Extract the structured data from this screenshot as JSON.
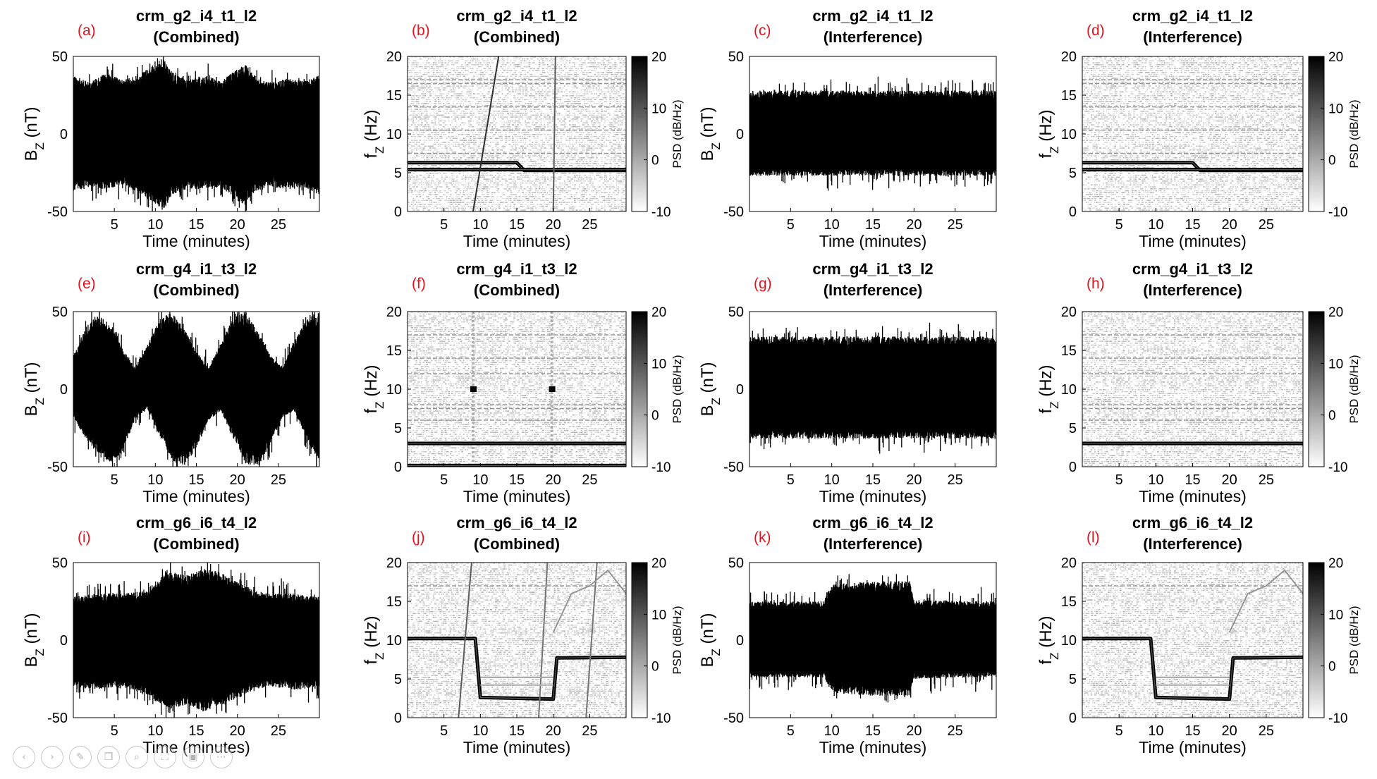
{
  "figure": {
    "panel_letter_color": "#e0141e",
    "ink_color": "#000000",
    "rows": [
      "crm_g2_i4_t1_l2",
      "crm_g4_i1_t3_l2",
      "crm_g6_i6_t4_l2"
    ]
  },
  "viewer_toolbar": {
    "icons": [
      "back-icon",
      "forward-icon",
      "edit-icon",
      "copy-icon",
      "zoom-icon",
      "fullscreen-icon",
      "camera-icon",
      "more-icon"
    ]
  },
  "chart_data": [
    {
      "panel": "(a)",
      "type": "line",
      "kind": "time_series",
      "title": [
        "crm_g2_i4_t1_l2",
        "(Combined)"
      ],
      "xlabel": "Time (minutes)",
      "ylabel": "B_Z (nT)",
      "xlim": [
        0,
        30
      ],
      "ylim": [
        -50,
        50
      ],
      "xticks": [
        5,
        10,
        15,
        20,
        25
      ],
      "yticks": [
        -50,
        0,
        50
      ],
      "envelope": {
        "x": [
          0,
          2,
          4,
          6,
          8,
          9,
          10,
          11,
          12,
          14,
          16,
          18,
          20,
          21,
          22,
          24,
          26,
          28,
          30
        ],
        "upper": [
          38,
          33,
          40,
          35,
          38,
          42,
          46,
          49,
          40,
          35,
          38,
          34,
          42,
          45,
          38,
          33,
          36,
          34,
          38
        ],
        "lower": [
          -37,
          -34,
          -36,
          -33,
          -38,
          -42,
          -45,
          -49,
          -40,
          -35,
          -36,
          -34,
          -44,
          -46,
          -38,
          -34,
          -36,
          -34,
          -40
        ]
      }
    },
    {
      "panel": "(b)",
      "type": "heatmap",
      "kind": "spectrogram",
      "title": [
        "crm_g2_i4_t1_l2",
        "(Combined)"
      ],
      "xlabel": "Time (minutes)",
      "ylabel": "f_Z (Hz)",
      "xlim": [
        0,
        30
      ],
      "ylim": [
        0,
        20
      ],
      "xticks": [
        5,
        10,
        15,
        20,
        25
      ],
      "yticks": [
        0,
        5,
        10,
        15,
        20
      ],
      "colorbar": {
        "label": "PSD (dB/Hz)",
        "ticks": [
          20,
          10,
          0,
          -10
        ],
        "range": [
          -10,
          20
        ]
      },
      "lines": [
        {
          "x": [
            0,
            15,
            16,
            30
          ],
          "y": [
            6.3,
            6.3,
            5.3,
            5.3
          ],
          "weight": 1
        },
        {
          "x": [
            0,
            30
          ],
          "y": [
            5.4,
            5.4
          ],
          "weight": 1
        },
        {
          "x": [
            9,
            12.5
          ],
          "y": [
            0,
            20
          ],
          "weight": 0.8
        },
        {
          "x": [
            20,
            20.3
          ],
          "y": [
            0,
            20
          ],
          "weight": 0.6
        }
      ],
      "faint_lines": [
        17,
        16.5,
        13.5,
        10.5,
        7.5
      ]
    },
    {
      "panel": "(c)",
      "type": "line",
      "kind": "time_series",
      "title": [
        "crm_g2_i4_t1_l2",
        "(Interference)"
      ],
      "xlabel": "Time (minutes)",
      "ylabel": "B_Z (nT)",
      "xlim": [
        0,
        30
      ],
      "ylim": [
        -50,
        50
      ],
      "xticks": [
        5,
        10,
        15,
        20,
        25
      ],
      "yticks": [
        -50,
        0,
        50
      ],
      "envelope": {
        "x": [
          0,
          30
        ],
        "upper": [
          28,
          28
        ],
        "lower": [
          -27,
          -27
        ]
      }
    },
    {
      "panel": "(d)",
      "type": "heatmap",
      "kind": "spectrogram",
      "title": [
        "crm_g2_i4_t1_l2",
        "(Interference)"
      ],
      "xlabel": "Time (minutes)",
      "ylabel": "f_Z (Hz)",
      "xlim": [
        0,
        30
      ],
      "ylim": [
        0,
        20
      ],
      "xticks": [
        5,
        10,
        15,
        20,
        25
      ],
      "yticks": [
        0,
        5,
        10,
        15,
        20
      ],
      "colorbar": {
        "label": "PSD (dB/Hz)",
        "ticks": [
          20,
          10,
          0,
          -10
        ],
        "range": [
          -10,
          20
        ]
      },
      "lines": [
        {
          "x": [
            0,
            15,
            16,
            30
          ],
          "y": [
            6.3,
            6.3,
            5.3,
            5.3
          ],
          "weight": 1
        },
        {
          "x": [
            0,
            30
          ],
          "y": [
            5.4,
            5.4
          ],
          "weight": 1
        }
      ],
      "faint_lines": [
        17,
        16.5,
        13.5,
        10.5,
        7.5
      ]
    },
    {
      "panel": "(e)",
      "type": "line",
      "kind": "time_series",
      "title": [
        "crm_g4_i1_t3_l2",
        "(Combined)"
      ],
      "xlabel": "Time (minutes)",
      "ylabel": "B_Z (nT)",
      "xlim": [
        0,
        30
      ],
      "ylim": [
        -50,
        50
      ],
      "xticks": [
        5,
        10,
        15,
        20,
        25
      ],
      "yticks": [
        -50,
        0,
        50
      ],
      "envelope": {
        "x": [
          0,
          1.5,
          3,
          4.5,
          6,
          7.5,
          9,
          10.5,
          12,
          13.5,
          15,
          16.5,
          18,
          19.5,
          21,
          22.5,
          24,
          25.5,
          27,
          28.5,
          30
        ],
        "upper": [
          22,
          40,
          48,
          42,
          26,
          14,
          28,
          45,
          50,
          40,
          24,
          14,
          30,
          46,
          50,
          38,
          22,
          14,
          32,
          46,
          50
        ],
        "lower": [
          -18,
          -32,
          -42,
          -48,
          -40,
          -20,
          -12,
          -30,
          -46,
          -50,
          -38,
          -20,
          -14,
          -32,
          -48,
          -50,
          -36,
          -18,
          -14,
          -34,
          -46
        ]
      }
    },
    {
      "panel": "(f)",
      "type": "heatmap",
      "kind": "spectrogram",
      "title": [
        "crm_g4_i1_t3_l2",
        "(Combined)"
      ],
      "xlabel": "Time (minutes)",
      "ylabel": "f_Z (Hz)",
      "xlim": [
        0,
        30
      ],
      "ylim": [
        0,
        20
      ],
      "xticks": [
        5,
        10,
        15,
        20,
        25
      ],
      "yticks": [
        0,
        5,
        10,
        15,
        20
      ],
      "colorbar": {
        "label": "PSD (dB/Hz)",
        "ticks": [
          20,
          10,
          0,
          -10
        ],
        "range": [
          -10,
          20
        ]
      },
      "lines": [
        {
          "x": [
            0,
            30
          ],
          "y": [
            3,
            3
          ],
          "weight": 1
        },
        {
          "x": [
            0,
            30
          ],
          "y": [
            0.15,
            0.15
          ],
          "weight": 1
        }
      ],
      "markers": [
        {
          "x": 9,
          "y": 10
        },
        {
          "x": 19.8,
          "y": 10
        }
      ],
      "faint_vertical": [
        9,
        19.8
      ],
      "faint_lines": [
        17,
        14,
        12,
        8,
        7.5,
        6
      ]
    },
    {
      "panel": "(g)",
      "type": "line",
      "kind": "time_series",
      "title": [
        "crm_g4_i1_t3_l2",
        "(Interference)"
      ],
      "xlabel": "Time (minutes)",
      "ylabel": "B_Z (nT)",
      "xlim": [
        0,
        30
      ],
      "ylim": [
        -50,
        50
      ],
      "xticks": [
        5,
        10,
        15,
        20,
        25
      ],
      "yticks": [
        -50,
        0,
        50
      ],
      "envelope": {
        "x": [
          0,
          30
        ],
        "upper": [
          34,
          34
        ],
        "lower": [
          -32,
          -32
        ]
      }
    },
    {
      "panel": "(h)",
      "type": "heatmap",
      "kind": "spectrogram",
      "title": [
        "crm_g4_i1_t3_l2",
        "(Interference)"
      ],
      "xlabel": "Time (minutes)",
      "ylabel": "f_Z (Hz)",
      "xlim": [
        0,
        30
      ],
      "ylim": [
        0,
        20
      ],
      "xticks": [
        5,
        10,
        15,
        20,
        25
      ],
      "yticks": [
        0,
        5,
        10,
        15,
        20
      ],
      "colorbar": {
        "label": "PSD (dB/Hz)",
        "ticks": [
          20,
          10,
          0,
          -10
        ],
        "range": [
          -10,
          20
        ]
      },
      "lines": [
        {
          "x": [
            0,
            30
          ],
          "y": [
            3,
            3
          ],
          "weight": 1
        }
      ],
      "faint_lines": [
        17,
        14,
        12,
        8,
        7.5,
        6
      ]
    },
    {
      "panel": "(i)",
      "type": "line",
      "kind": "time_series",
      "title": [
        "crm_g6_i6_t4_l2",
        "(Combined)"
      ],
      "xlabel": "Time (minutes)",
      "ylabel": "B_Z (nT)",
      "xlim": [
        0,
        30
      ],
      "ylim": [
        -50,
        50
      ],
      "xticks": [
        5,
        10,
        15,
        20,
        25
      ],
      "yticks": [
        -50,
        0,
        50
      ],
      "envelope": {
        "x": [
          0,
          3,
          6,
          9,
          10,
          12,
          14,
          16,
          18,
          20,
          22,
          24,
          27,
          30
        ],
        "upper": [
          28,
          30,
          30,
          32,
          38,
          44,
          42,
          46,
          44,
          38,
          32,
          30,
          30,
          28
        ],
        "lower": [
          -30,
          -32,
          -30,
          -36,
          -40,
          -44,
          -42,
          -46,
          -42,
          -38,
          -32,
          -30,
          -32,
          -30
        ]
      }
    },
    {
      "panel": "(j)",
      "type": "heatmap",
      "kind": "spectrogram",
      "title": [
        "crm_g6_i6_t4_l2",
        "(Combined)"
      ],
      "xlabel": "Time (minutes)",
      "ylabel": "f_Z (Hz)",
      "xlim": [
        0,
        30
      ],
      "ylim": [
        0,
        20
      ],
      "xticks": [
        5,
        10,
        15,
        20,
        25
      ],
      "yticks": [
        0,
        5,
        10,
        15,
        20
      ],
      "colorbar": {
        "label": "PSD (dB/Hz)",
        "ticks": [
          20,
          10,
          0,
          -10
        ],
        "range": [
          -10,
          20
        ]
      },
      "lines": [
        {
          "x": [
            0,
            9.3,
            10,
            20,
            20.5,
            30
          ],
          "y": [
            10.2,
            10.2,
            2.6,
            2.4,
            7.7,
            7.8
          ],
          "weight": 1
        },
        {
          "x": [
            7,
            8.8
          ],
          "y": [
            0,
            20
          ],
          "weight": 0.6
        },
        {
          "x": [
            18,
            19.2
          ],
          "y": [
            0,
            20
          ],
          "weight": 0.5
        },
        {
          "x": [
            24.5,
            26
          ],
          "y": [
            0,
            20
          ],
          "weight": 0.5
        },
        {
          "x": [
            20,
            22.5,
            25,
            27.5,
            30
          ],
          "y": [
            11,
            16,
            17,
            19,
            16
          ],
          "weight": 0.35
        },
        {
          "x": [
            10,
            20
          ],
          "y": [
            5.2,
            5.2
          ],
          "weight": 0.3
        },
        {
          "x": [
            10,
            20
          ],
          "y": [
            4.2,
            4.2
          ],
          "weight": 0.25
        }
      ],
      "faint_lines": [
        17
      ]
    },
    {
      "panel": "(k)",
      "type": "line",
      "kind": "time_series",
      "title": [
        "crm_g6_i6_t4_l2",
        "(Interference)"
      ],
      "xlabel": "Time (minutes)",
      "ylabel": "B_Z (nT)",
      "xlim": [
        0,
        30
      ],
      "ylim": [
        -50,
        50
      ],
      "xticks": [
        5,
        10,
        15,
        20,
        25
      ],
      "yticks": [
        -50,
        0,
        50
      ],
      "envelope": {
        "x": [
          0,
          9,
          10,
          15,
          19.5,
          20,
          30
        ],
        "upper": [
          25,
          25,
          36,
          38,
          38,
          26,
          25
        ],
        "lower": [
          -24,
          -24,
          -34,
          -36,
          -36,
          -25,
          -24
        ]
      }
    },
    {
      "panel": "(l)",
      "type": "heatmap",
      "kind": "spectrogram",
      "title": [
        "crm_g6_i6_t4_l2",
        "(Interference)"
      ],
      "xlabel": "Time (minutes)",
      "ylabel": "f_Z (Hz)",
      "xlim": [
        0,
        30
      ],
      "ylim": [
        0,
        20
      ],
      "xticks": [
        5,
        10,
        15,
        20,
        25
      ],
      "yticks": [
        0,
        5,
        10,
        15,
        20
      ],
      "colorbar": {
        "label": "PSD (dB/Hz)",
        "ticks": [
          20,
          10,
          0,
          -10
        ],
        "range": [
          -10,
          20
        ]
      },
      "lines": [
        {
          "x": [
            0,
            9.3,
            10,
            20,
            20.5,
            30
          ],
          "y": [
            10.2,
            10.2,
            2.6,
            2.4,
            7.7,
            7.8
          ],
          "weight": 1
        },
        {
          "x": [
            20,
            22.5,
            25,
            27.5,
            30
          ],
          "y": [
            11,
            16,
            17,
            19,
            16
          ],
          "weight": 0.35
        },
        {
          "x": [
            10,
            20
          ],
          "y": [
            5.2,
            5.2
          ],
          "weight": 0.3
        },
        {
          "x": [
            10,
            20
          ],
          "y": [
            4.2,
            4.2
          ],
          "weight": 0.25
        }
      ],
      "faint_lines": [
        17
      ]
    }
  ]
}
